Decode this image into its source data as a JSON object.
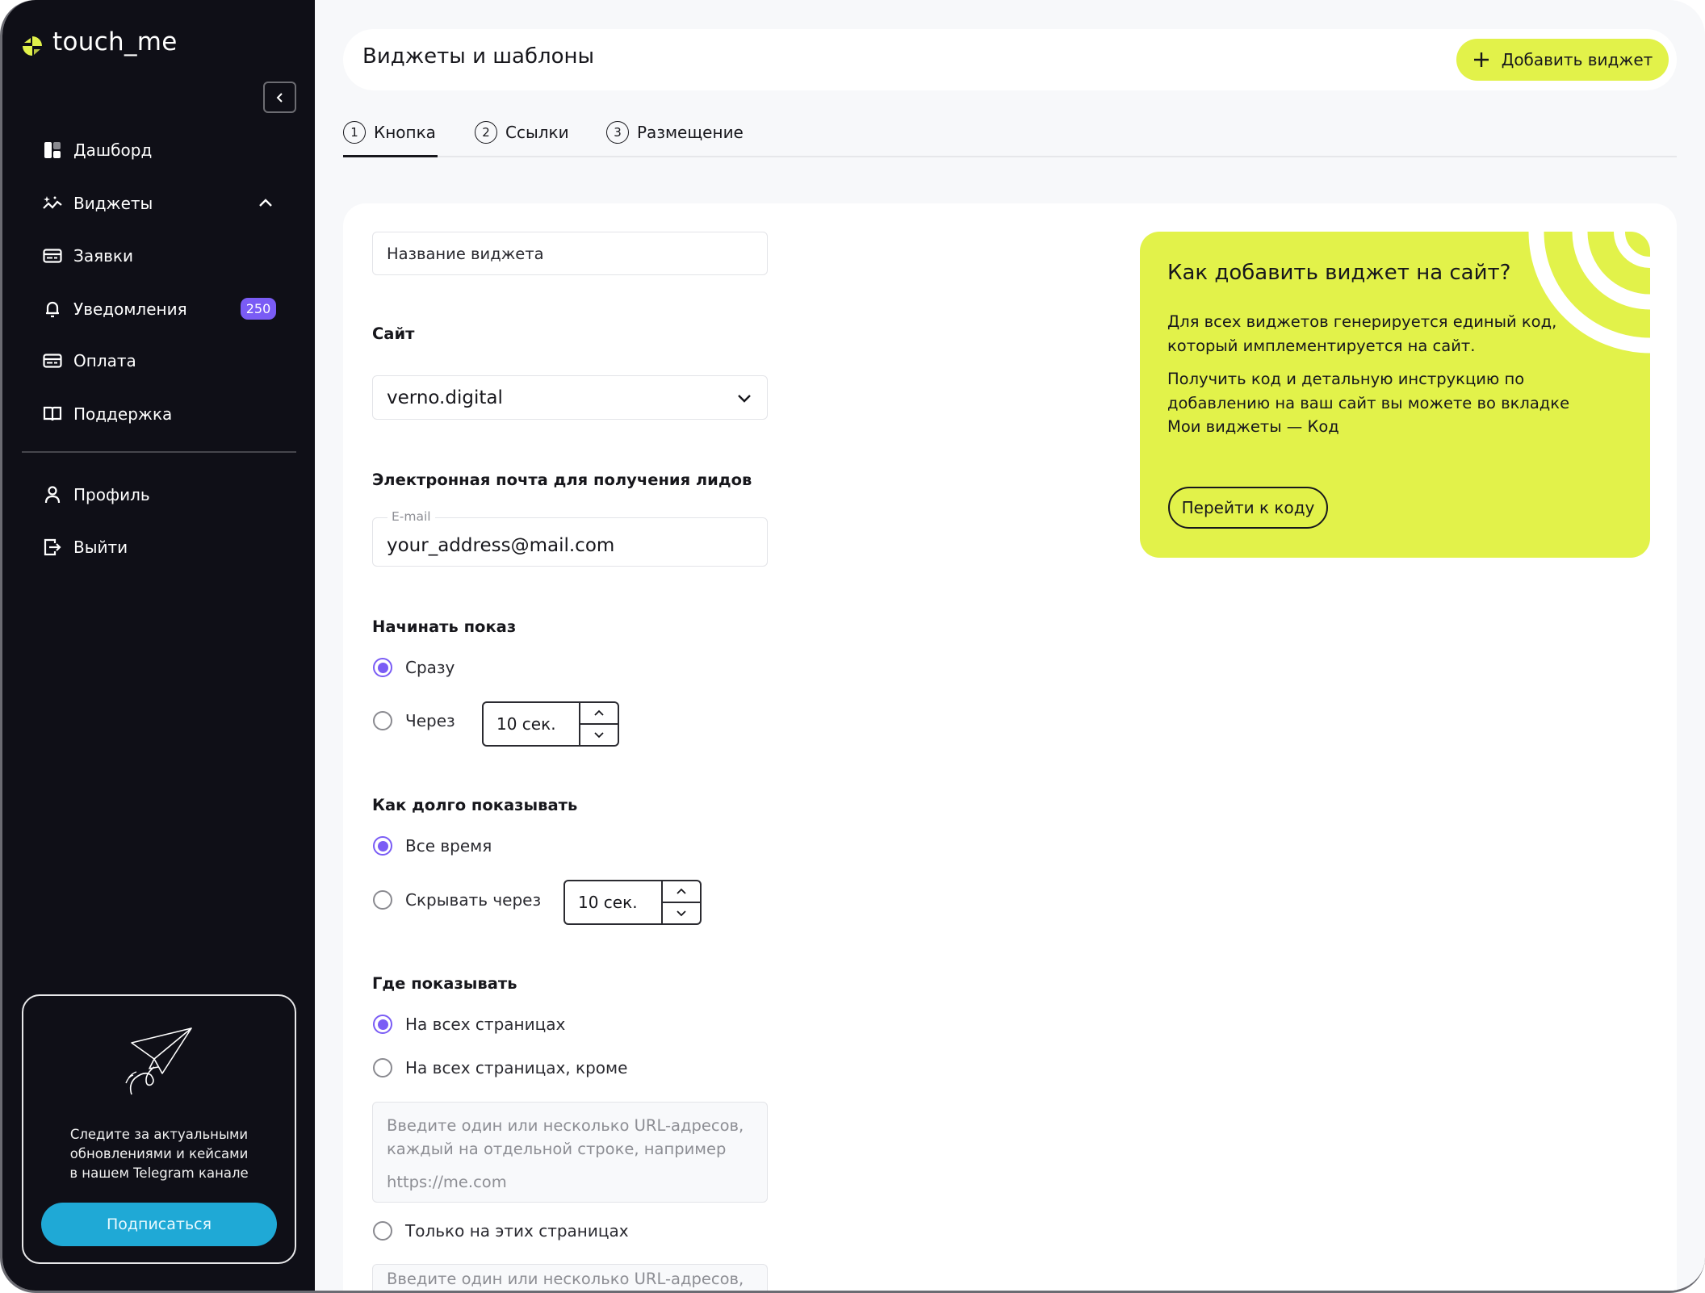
{
  "brand": {
    "name": "touch_me",
    "accent": "#e2f24a"
  },
  "sidebar": {
    "items": [
      {
        "label": "Дашборд",
        "icon": "dashboard-icon"
      },
      {
        "label": "Виджеты",
        "icon": "widgets-sparkle-icon",
        "expanded": true
      },
      {
        "label": "Заявки",
        "icon": "card-icon"
      },
      {
        "label": "Уведомления",
        "icon": "bell-icon",
        "badge": "250"
      },
      {
        "label": "Оплата",
        "icon": "card-icon"
      },
      {
        "label": "Поддержка",
        "icon": "book-icon"
      }
    ],
    "bottom_items": [
      {
        "label": "Профиль",
        "icon": "user-icon"
      },
      {
        "label": "Выйти",
        "icon": "logout-icon"
      }
    ],
    "telegram": {
      "lines": [
        "Следите за актуальными",
        "обновлениями и кейсами",
        "в нашем Telegram канале"
      ],
      "button": "Подписаться",
      "button_color": "#1fa9d6"
    }
  },
  "header": {
    "title": "Виджеты и шаблоны",
    "add_button": "Добавить виджет"
  },
  "tabs": [
    {
      "num": "1",
      "label": "Кнопка",
      "active": true
    },
    {
      "num": "2",
      "label": "Ссылки"
    },
    {
      "num": "3",
      "label": "Размещение"
    }
  ],
  "form": {
    "name_placeholder": "Название виджета",
    "site_label": "Сайт",
    "site_value": "verno.digital",
    "email_label": "Электронная почта для получения лидов",
    "email_legend": "E-mail",
    "email_value": "your_address@mail.com",
    "start": {
      "label": "Начинать показ",
      "opt_now": "Сразу",
      "opt_after": "Через",
      "after_value": "10 сек.",
      "selected": "Сразу"
    },
    "duration": {
      "label": "Как долго показывать",
      "opt_always": "Все время",
      "opt_hide": "Скрывать через",
      "hide_value": "10 сек.",
      "selected": "Все время"
    },
    "where": {
      "label": "Где показывать",
      "opt_all": "На всех страницах",
      "opt_except": "На всех страницах, кроме",
      "except_placeholder_1": "Введите один или несколько URL-адресов,",
      "except_placeholder_2": "каждый на отдельной строке, например",
      "except_placeholder_3": "https://me.com",
      "opt_only": "Только на этих страницах",
      "only_placeholder_1": "Введите один или несколько URL-адресов,",
      "selected": "На всех страницах"
    },
    "radio_color": "#7a5cf5"
  },
  "promo": {
    "title": "Как добавить виджет на сайт?",
    "p1_1": "Для всех виджетов генерируется единый код,",
    "p1_2": "который имплементируется на сайт.",
    "p2_1": "Получить код и детальную инструкцию по",
    "p2_2": "добавлению на ваш сайт вы можете во вкладке",
    "p2_3": "Мои виджеты — Код",
    "button": "Перейти к коду"
  }
}
